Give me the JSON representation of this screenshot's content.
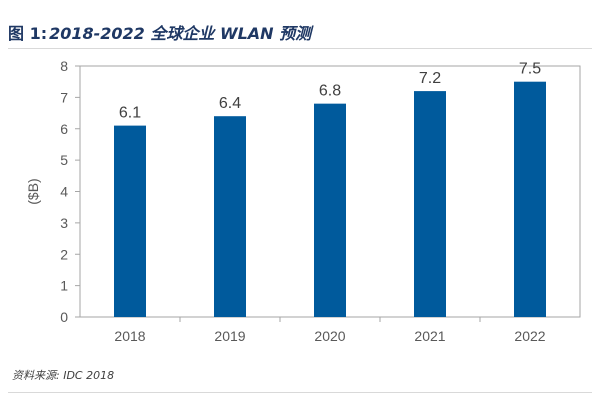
{
  "figure": {
    "label": "图 1:",
    "title": "2018-2022 全球企业 WLAN 预测",
    "source": "资料来源: IDC 2018"
  },
  "colors": {
    "bar": "#005a9c",
    "title": "#1f3864",
    "axis": "#595959"
  },
  "chart_data": {
    "type": "bar",
    "categories": [
      "2018",
      "2019",
      "2020",
      "2021",
      "2022"
    ],
    "values": [
      6.1,
      6.4,
      6.8,
      7.2,
      7.5
    ],
    "data_labels": [
      "6.1",
      "6.4",
      "6.8",
      "7.2",
      "7.5"
    ],
    "ylabel": "($B)",
    "xlabel": "",
    "ylim": [
      0,
      8
    ],
    "yticks": [
      0,
      1,
      2,
      3,
      4,
      5,
      6,
      7,
      8
    ],
    "grid": false,
    "legend": "none"
  }
}
